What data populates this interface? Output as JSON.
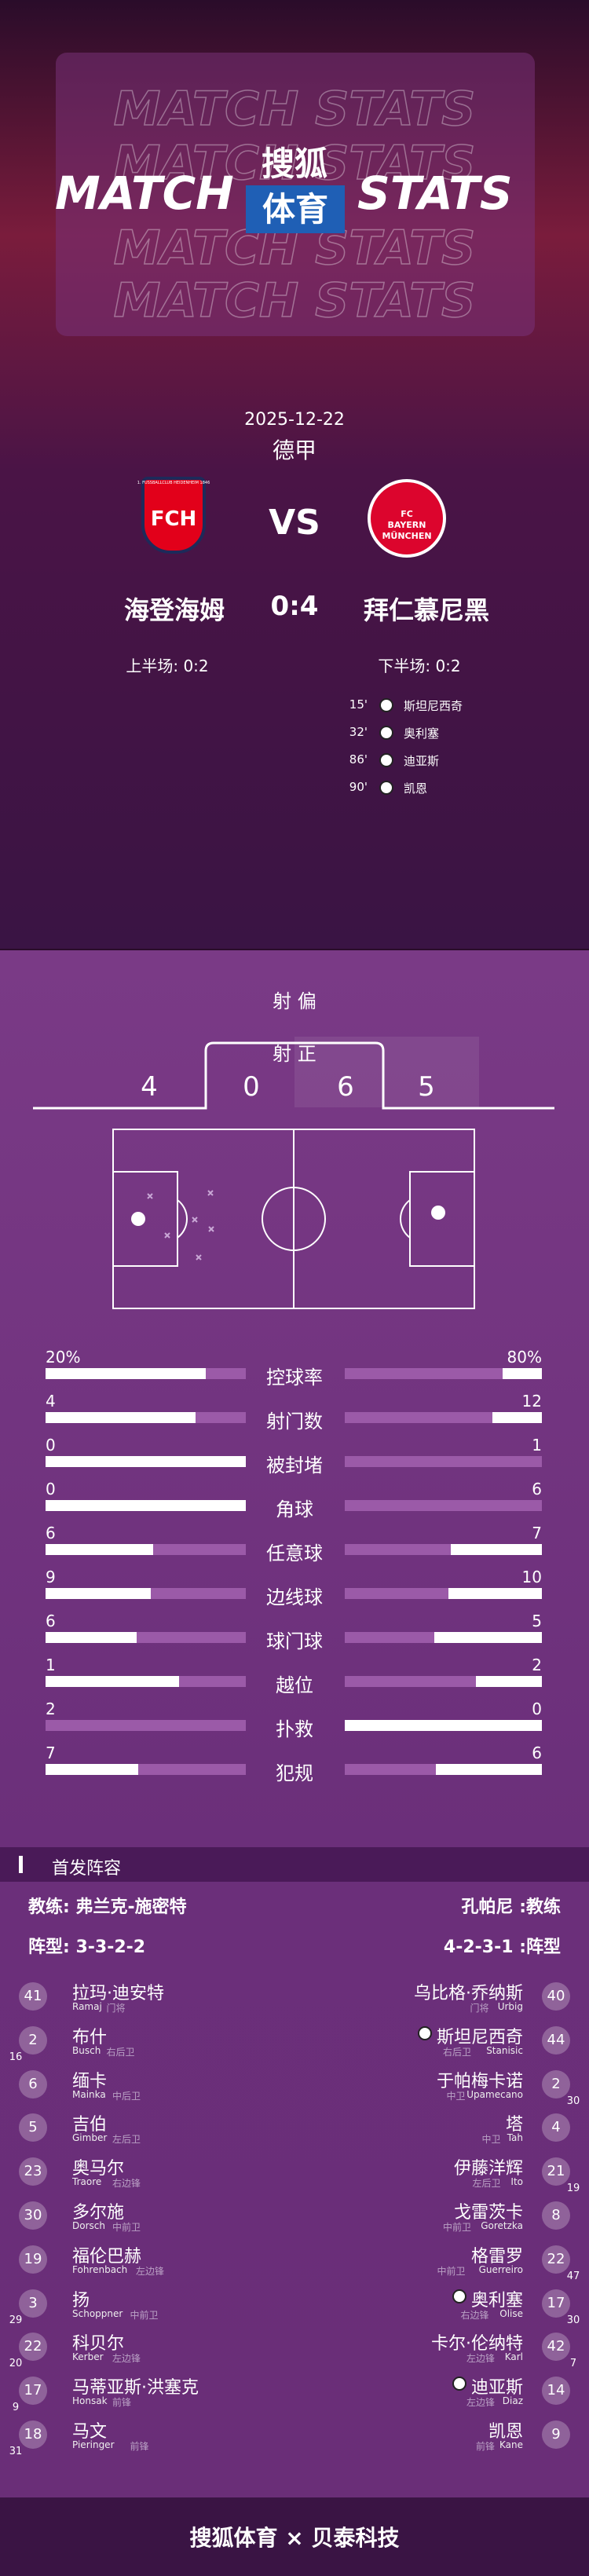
{
  "header": {
    "bg_text": "MATCH STATS",
    "left": "MATCH",
    "brand_top": "搜狐",
    "brand_bottom": "体育",
    "right": "STATS"
  },
  "match": {
    "date": "2025-12-22",
    "league": "德甲",
    "home_logo": "FCH",
    "home_logo_small": "1. FUSSBALLCLUB HEIDENHEIM 1846",
    "away_logo": "FC BAYERN MÜNCHEN",
    "vs": "VS",
    "home": "海登海姆",
    "score": "0:4",
    "away": "拜仁慕尼黑",
    "home_half": "上半场: 0:2",
    "away_half": "下半场: 0:2"
  },
  "goals": [
    {
      "minute": "15'",
      "player": "斯坦尼西奇"
    },
    {
      "minute": "32'",
      "player": "奥利塞"
    },
    {
      "minute": "86'",
      "player": "迪亚斯"
    },
    {
      "minute": "90'",
      "player": "凯恩"
    }
  ],
  "shots": {
    "off_label": "射 偏",
    "on_label": "射 正",
    "home_off": 4,
    "home_on": 0,
    "away_on": 6,
    "away_off": 5
  },
  "stats": [
    {
      "label": "控球率",
      "home": 20,
      "away": 80,
      "home_label": "20%",
      "away_label": "80%"
    },
    {
      "label": "射门数",
      "home": 4,
      "away": 12
    },
    {
      "label": "被封堵",
      "home": 0,
      "away": 1
    },
    {
      "label": "角球",
      "home": 0,
      "away": 6
    },
    {
      "label": "任意球",
      "home": 6,
      "away": 7
    },
    {
      "label": "边线球",
      "home": 9,
      "away": 10
    },
    {
      "label": "球门球",
      "home": 6,
      "away": 5
    },
    {
      "label": "越位",
      "home": 1,
      "away": 2
    },
    {
      "label": "扑救",
      "home": 2,
      "away": 0
    },
    {
      "label": "犯规",
      "home": 7,
      "away": 6
    }
  ],
  "lineup": {
    "title": "首发阵容",
    "home_coach": "教练: 弗兰克-施密特",
    "away_coach": "孔帕尼 :教练",
    "home_formation": "阵型: 3-3-2-2",
    "away_formation": "4-2-3-1 :阵型",
    "home": [
      {
        "number": "41",
        "name": "拉玛·迪安特",
        "en": "Ramaj",
        "pos": "门将"
      },
      {
        "number": "2",
        "name": "布什",
        "en": "Busch",
        "pos": "右后卫",
        "sub": "16"
      },
      {
        "number": "6",
        "name": "缅卡",
        "en": "Mainka",
        "pos": "中后卫"
      },
      {
        "number": "5",
        "name": "吉伯",
        "en": "Gimber",
        "pos": "左后卫"
      },
      {
        "number": "23",
        "name": "奥马尔",
        "en": "Traore",
        "pos": "右边锋"
      },
      {
        "number": "30",
        "name": "多尔施",
        "en": "Dorsch",
        "pos": "中前卫"
      },
      {
        "number": "19",
        "name": "福伦巴赫",
        "en": "Fohrenbach",
        "pos": "左边锋"
      },
      {
        "number": "3",
        "name": "扬",
        "en": "Schoppner",
        "pos": "中前卫",
        "sub": "29"
      },
      {
        "number": "22",
        "name": "科贝尔",
        "en": "Kerber",
        "pos": "左边锋",
        "sub": "20"
      },
      {
        "number": "17",
        "name": "马蒂亚斯·洪塞克",
        "en": "Honsak",
        "pos": "前锋",
        "sub": "9"
      },
      {
        "number": "18",
        "name": "马文",
        "en": "Pieringer",
        "pos": "前锋",
        "sub": "31"
      }
    ],
    "away": [
      {
        "number": "40",
        "name": "乌比格·乔纳斯",
        "en": "Urbig",
        "pos": "门将"
      },
      {
        "number": "44",
        "name": "斯坦尼西奇",
        "en": "Stanisic",
        "pos": "右后卫",
        "goal": true
      },
      {
        "number": "2",
        "name": "于帕梅卡诺",
        "en": "Upamecano",
        "pos": "中卫",
        "sub": "30"
      },
      {
        "number": "4",
        "name": "塔",
        "en": "Tah",
        "pos": "中卫"
      },
      {
        "number": "21",
        "name": "伊藤洋辉",
        "en": "Ito",
        "pos": "左后卫",
        "sub": "19"
      },
      {
        "number": "8",
        "name": "戈雷茨卡",
        "en": "Goretzka",
        "pos": "中前卫"
      },
      {
        "number": "22",
        "name": "格雷罗",
        "en": "Guerreiro",
        "pos": "中前卫",
        "sub": "47"
      },
      {
        "number": "17",
        "name": "奥利塞",
        "en": "Olise",
        "pos": "右边锋",
        "sub": "30",
        "goal": true
      },
      {
        "number": "42",
        "name": "卡尔·伦纳特",
        "en": "Karl",
        "pos": "左边锋",
        "sub": "7"
      },
      {
        "number": "14",
        "name": "迪亚斯",
        "en": "Diaz",
        "pos": "左边锋",
        "goal": true
      },
      {
        "number": "9",
        "name": "凯恩",
        "en": "Kane",
        "pos": "前锋"
      }
    ]
  },
  "footer": "搜狐体育 × 贝泰科技"
}
